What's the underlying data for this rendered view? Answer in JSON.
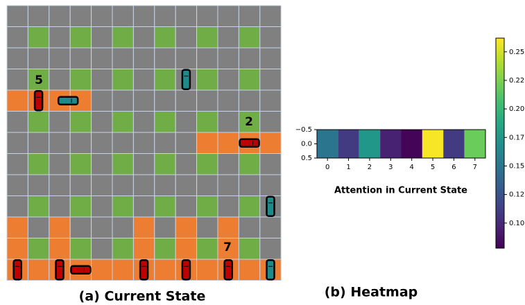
{
  "panel_a": {
    "caption": "(a) Current State",
    "vehicle_labels": [
      "5",
      "2",
      "7"
    ]
  },
  "panel_b": {
    "caption": "(b) Heatmap",
    "chart_data": {
      "type": "heatmap",
      "title": "Attention in Current State",
      "values": [
        0.15,
        0.11,
        0.175,
        0.095,
        0.08,
        0.26,
        0.11,
        0.22
      ],
      "xlim": [
        -0.5,
        7.5
      ],
      "xticks": [
        0,
        1,
        2,
        3,
        4,
        5,
        6,
        7
      ],
      "ylim": [
        -0.5,
        0.5
      ],
      "yticks": [
        {
          "value": -0.5,
          "label": "−0.5"
        },
        {
          "value": 0,
          "label": "0.0"
        },
        0.5
      ],
      "colormap": "viridis",
      "clim": [
        0.078,
        0.262
      ],
      "cticks": [
        {
          "value": 0.1,
          "label": "0.100"
        },
        {
          "value": 0.125,
          "label": "0.125"
        },
        {
          "value": 0.15,
          "label": "0.150"
        },
        {
          "value": 0.175,
          "label": "0.175"
        },
        {
          "value": 0.2,
          "label": "0.200"
        },
        {
          "value": 0.225,
          "label": "0.225"
        },
        {
          "value": 0.25,
          "label": "0.250"
        }
      ]
    }
  }
}
